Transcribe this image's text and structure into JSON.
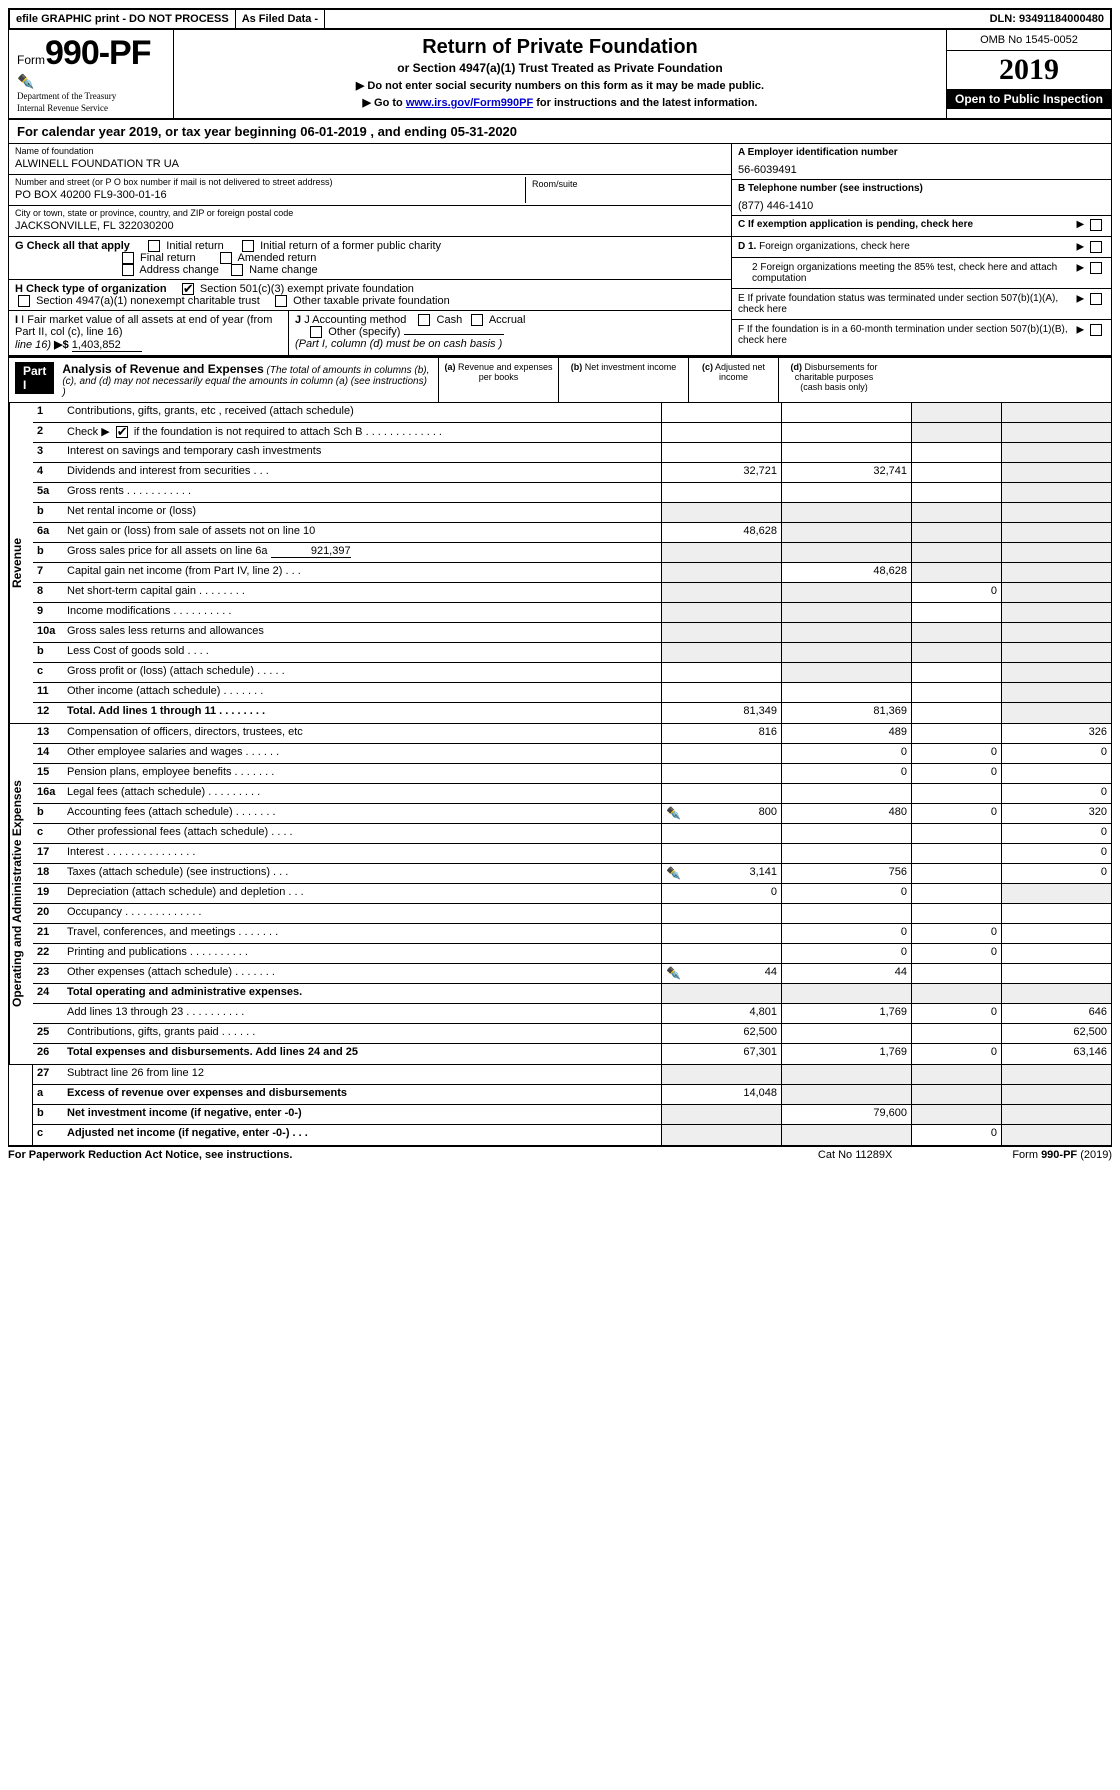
{
  "topbar": {
    "efile": "efile GRAPHIC print - DO NOT PROCESS",
    "asfiled": "As Filed Data -",
    "dln_label": "DLN:",
    "dln": "93491184000480"
  },
  "header": {
    "form_word": "Form",
    "form_no": "990-PF",
    "treasury1": "Department of the Treasury",
    "treasury2": "Internal Revenue Service",
    "title": "Return of Private Foundation",
    "subtitle": "or Section 4947(a)(1) Trust Treated as Private Foundation",
    "note1": "▶ Do not enter social security numbers on this form as it may be made public.",
    "note2_pre": "▶ Go to ",
    "note2_link": "www.irs.gov/Form990PF",
    "note2_post": " for instructions and the latest information.",
    "omb": "OMB No 1545-0052",
    "year": "2019",
    "open": "Open to Public Inspection"
  },
  "calyear": {
    "text_pre": "For calendar year 2019, or tax year beginning ",
    "begin": "06-01-2019",
    "mid": " , and ending ",
    "end": "05-31-2020"
  },
  "name": {
    "label": "Name of foundation",
    "value": "ALWINELL FOUNDATION TR UA"
  },
  "ein": {
    "label": "A Employer identification number",
    "value": "56-6039491"
  },
  "addr": {
    "label": "Number and street (or P O  box number if mail is not delivered to street address)",
    "value": "PO BOX 40200 FL9-300-01-16",
    "room_label": "Room/suite"
  },
  "tel": {
    "label": "B Telephone number (see instructions)",
    "value": "(877) 446-1410"
  },
  "city": {
    "label": "City or town, state or province, country, and ZIP or foreign postal code",
    "value": "JACKSONVILLE, FL  322030200"
  },
  "c": {
    "label": "C If exemption application is pending, check here"
  },
  "g": {
    "label": "G Check all that apply",
    "initial": "Initial return",
    "initial_former": "Initial return of a former public charity",
    "final": "Final return",
    "amended": "Amended return",
    "address": "Address change",
    "name": "Name change"
  },
  "h": {
    "label": "H Check type of organization",
    "s501": "Section 501(c)(3) exempt private foundation",
    "s4947": "Section 4947(a)(1) nonexempt charitable trust",
    "other": "Other taxable private foundation"
  },
  "i": {
    "label": "I Fair market value of all assets at end of year (from Part II, col  (c), line 16)",
    "arrow": "▶$ ",
    "value": "1,403,852"
  },
  "j": {
    "label": "J Accounting method",
    "cash": "Cash",
    "accrual": "Accrual",
    "other": "Other (specify)",
    "note": "(Part I, column (d) must be on cash basis )"
  },
  "d": {
    "d1": "D 1. Foreign organizations, check here",
    "d2": "2  Foreign organizations meeting the 85% test, check here and attach computation"
  },
  "e": {
    "label": "E  If private foundation status was terminated under section 507(b)(1)(A), check here"
  },
  "f": {
    "label": "F  If the foundation is in a 60-month termination under section 507(b)(1)(B), check here"
  },
  "part1": {
    "badge": "Part I",
    "title": "Analysis of Revenue and Expenses",
    "note": " (The total of amounts in columns (b), (c), and (d) may not necessarily equal the amounts in column (a) (see instructions) )",
    "cols": {
      "a": "(a) Revenue and expenses per books",
      "b": "(b) Net investment income",
      "c": "(c) Adjusted net income",
      "d": "(d) Disbursements for charitable purposes (cash basis only)"
    }
  },
  "sections": {
    "revenue": "Revenue",
    "expenses": "Operating and Administrative Expenses"
  },
  "lines": {
    "l1": {
      "no": "1",
      "desc": "Contributions, gifts, grants, etc , received (attach schedule)"
    },
    "l2": {
      "no": "2",
      "desc_pre": "Check ▶ ",
      "desc_post": " if the foundation is not required to attach Sch  B       .   .   .   .   .   .   .   .   .   .   .   .   ."
    },
    "l3": {
      "no": "3",
      "desc": "Interest on savings and temporary cash investments"
    },
    "l4": {
      "no": "4",
      "desc": "Dividends and interest from securities     .   .   .",
      "a": "32,721",
      "b": "32,741"
    },
    "l5a": {
      "no": "5a",
      "desc": "Gross rents       .   .   .   .   .   .   .   .   .   .   ."
    },
    "l5b": {
      "no": "b",
      "desc": "Net rental income or (loss)  "
    },
    "l6a": {
      "no": "6a",
      "desc": "Net gain or (loss) from sale of assets not on line 10",
      "a": "48,628"
    },
    "l6b": {
      "no": "b",
      "desc": "Gross sales price for all assets on line 6a",
      "inline": "921,397"
    },
    "l7": {
      "no": "7",
      "desc": "Capital gain net income (from Part IV, line 2)   .   .   .",
      "b": "48,628"
    },
    "l8": {
      "no": "8",
      "desc": "Net short-term capital gain   .   .   .   .   .   .   .   .",
      "c": "0"
    },
    "l9": {
      "no": "9",
      "desc": "Income modifications  .   .   .   .   .   .   .   .   .   ."
    },
    "l10a": {
      "no": "10a",
      "desc": "Gross sales less returns and allowances"
    },
    "l10b": {
      "no": "b",
      "desc": "Less  Cost of goods sold    .   .   .   ."
    },
    "l10c": {
      "no": "c",
      "desc": "Gross profit or (loss) (attach schedule)    .   .   .   .   ."
    },
    "l11": {
      "no": "11",
      "desc": "Other income (attach schedule)     .   .   .   .   .   .   ."
    },
    "l12": {
      "no": "12",
      "desc": "Total. Add lines 1 through 11    .   .   .   .   .   .   .   .",
      "bold": true,
      "a": "81,349",
      "b": "81,369"
    },
    "l13": {
      "no": "13",
      "desc": "Compensation of officers, directors, trustees, etc",
      "a": "816",
      "b": "489",
      "d": "326"
    },
    "l14": {
      "no": "14",
      "desc": "Other employee salaries and wages     .   .   .   .   .   .",
      "b": "0",
      "c": "0",
      "d": "0"
    },
    "l15": {
      "no": "15",
      "desc": "Pension plans, employee benefits   .   .   .   .   .   .   .",
      "b": "0",
      "c": "0"
    },
    "l16a": {
      "no": "16a",
      "desc": "Legal fees (attach schedule)  .   .   .   .   .   .   .   .   .",
      "d": "0"
    },
    "l16b": {
      "no": "b",
      "desc": "Accounting fees (attach schedule)  .   .   .   .   .   .   .",
      "icon": true,
      "a": "800",
      "b": "480",
      "c": "0",
      "d": "320"
    },
    "l16c": {
      "no": "c",
      "desc": "Other professional fees (attach schedule)    .   .   .   .",
      "d": "0"
    },
    "l17": {
      "no": "17",
      "desc": "Interest  .   .   .   .   .   .   .   .   .   .   .   .   .   .   .",
      "d": "0"
    },
    "l18": {
      "no": "18",
      "desc": "Taxes (attach schedule) (see instructions)       .   .   .",
      "icon": true,
      "a": "3,141",
      "b": "756",
      "d": "0"
    },
    "l19": {
      "no": "19",
      "desc": "Depreciation (attach schedule) and depletion    .   .   .",
      "a": "0",
      "b": "0"
    },
    "l20": {
      "no": "20",
      "desc": "Occupancy    .   .   .   .   .   .   .   .   .   .   .   .   ."
    },
    "l21": {
      "no": "21",
      "desc": "Travel, conferences, and meetings  .   .   .   .   .   .   .",
      "b": "0",
      "c": "0"
    },
    "l22": {
      "no": "22",
      "desc": "Printing and publications  .   .   .   .   .   .   .   .   .   .",
      "b": "0",
      "c": "0"
    },
    "l23": {
      "no": "23",
      "desc": "Other expenses (attach schedule)  .   .   .   .   .   .   .",
      "icon": true,
      "a": "44",
      "b": "44"
    },
    "l24": {
      "no": "24",
      "desc": "Total operating and administrative expenses.",
      "bold": true
    },
    "l24b": {
      "no": "",
      "desc": "Add lines 13 through 23   .   .   .   .   .   .   .   .   .   .",
      "a": "4,801",
      "b": "1,769",
      "c": "0",
      "d": "646"
    },
    "l25": {
      "no": "25",
      "desc": "Contributions, gifts, grants paid       .   .   .   .   .   .",
      "a": "62,500",
      "d": "62,500"
    },
    "l26": {
      "no": "26",
      "desc": "Total expenses and disbursements. Add lines 24 and 25",
      "bold": true,
      "a": "67,301",
      "b": "1,769",
      "c": "0",
      "d": "63,146"
    },
    "l27": {
      "no": "27",
      "desc": "Subtract line 26 from line 12"
    },
    "l27a": {
      "no": "a",
      "desc": "Excess of revenue over expenses and disbursements",
      "bold": true,
      "a": "14,048"
    },
    "l27b": {
      "no": "b",
      "desc": "Net investment income (if negative, enter -0-)",
      "bold": true,
      "b": "79,600"
    },
    "l27c": {
      "no": "c",
      "desc": "Adjusted net income (if negative, enter -0-)   .   .   .",
      "bold": true,
      "c": "0"
    }
  },
  "footer": {
    "left": "For Paperwork Reduction Act Notice, see instructions.",
    "cat": "Cat  No  11289X",
    "form": "Form 990-PF (2019)"
  },
  "colors": {
    "link": "#0000cc",
    "shade": "#eeeeee"
  }
}
